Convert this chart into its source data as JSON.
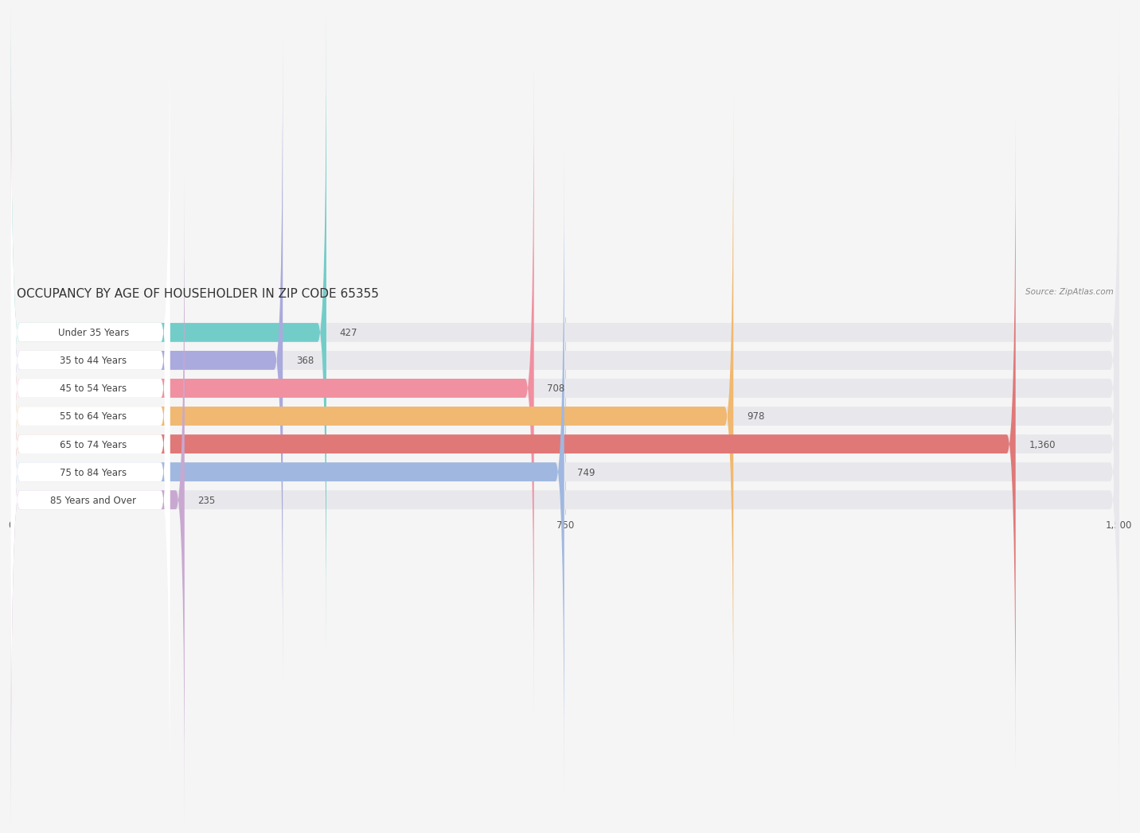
{
  "title": "OCCUPANCY BY AGE OF HOUSEHOLDER IN ZIP CODE 65355",
  "source": "Source: ZipAtlas.com",
  "categories": [
    "Under 35 Years",
    "35 to 44 Years",
    "45 to 54 Years",
    "55 to 64 Years",
    "65 to 74 Years",
    "75 to 84 Years",
    "85 Years and Over"
  ],
  "values": [
    427,
    368,
    708,
    978,
    1360,
    749,
    235
  ],
  "bar_colors": [
    "#72cdc9",
    "#aaaade",
    "#f090a0",
    "#f0b870",
    "#e07878",
    "#a0b8e0",
    "#c8a8d0"
  ],
  "xlim": [
    0,
    1500
  ],
  "xticks": [
    0,
    750,
    1500
  ],
  "background_color": "#f5f5f5",
  "bar_bg_color": "#e8e8ec",
  "label_bg_color": "#ffffff",
  "title_fontsize": 11,
  "label_fontsize": 8.5,
  "value_fontsize": 8.5,
  "bar_height": 0.68,
  "label_text_color": "#444444",
  "value_text_color": "#555555"
}
